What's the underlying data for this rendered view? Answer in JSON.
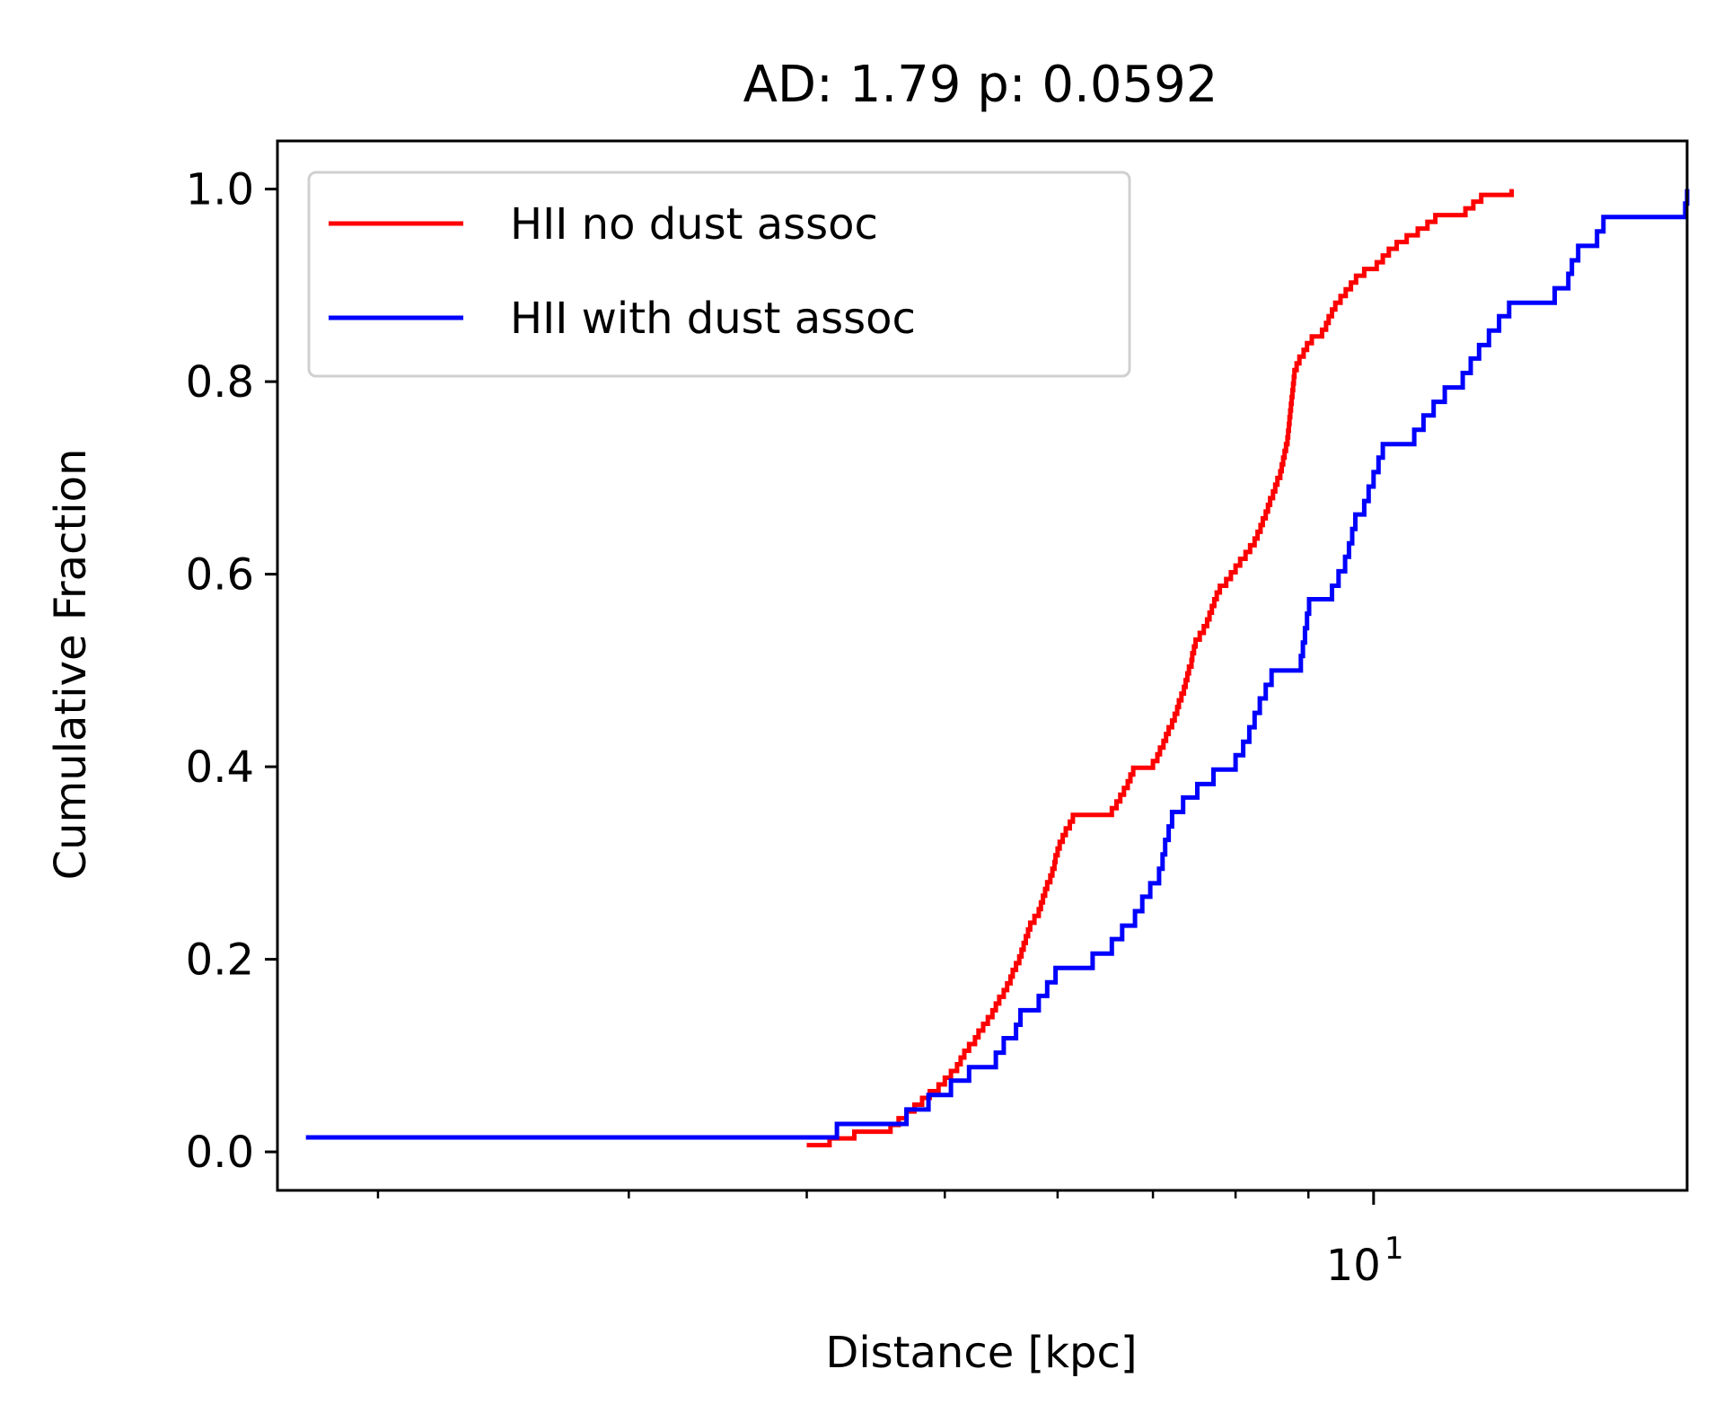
{
  "chart_data": {
    "type": "line",
    "title": "AD: 1.79 p: 0.0592",
    "xlabel": "Distance [kpc]",
    "ylabel": "Cumulative Fraction",
    "x_scale": "log",
    "xlim": [
      1.7,
      16.6
    ],
    "ylim": [
      -0.04,
      1.05
    ],
    "y_ticks": [
      "0.0",
      "0.2",
      "0.4",
      "0.6",
      "0.8",
      "1.0"
    ],
    "x_major_tick": {
      "base": "10",
      "exponent": "1"
    },
    "grid": false,
    "legend_position": "top-left",
    "series": [
      {
        "name": "HII no dust assoc",
        "color": "#ff0000",
        "step": true,
        "points": [
          [
            4.0,
            0.007
          ],
          [
            4.15,
            0.014
          ],
          [
            4.32,
            0.021
          ],
          [
            4.58,
            0.028
          ],
          [
            4.64,
            0.035
          ],
          [
            4.7,
            0.042
          ],
          [
            4.76,
            0.049
          ],
          [
            4.82,
            0.056
          ],
          [
            4.88,
            0.063
          ],
          [
            4.95,
            0.07
          ],
          [
            5.0,
            0.077
          ],
          [
            5.05,
            0.084
          ],
          [
            5.1,
            0.091
          ],
          [
            5.13,
            0.098
          ],
          [
            5.16,
            0.105
          ],
          [
            5.2,
            0.112
          ],
          [
            5.25,
            0.119
          ],
          [
            5.28,
            0.126
          ],
          [
            5.32,
            0.133
          ],
          [
            5.36,
            0.14
          ],
          [
            5.4,
            0.147
          ],
          [
            5.43,
            0.154
          ],
          [
            5.46,
            0.161
          ],
          [
            5.5,
            0.168
          ],
          [
            5.53,
            0.175
          ],
          [
            5.56,
            0.182
          ],
          [
            5.58,
            0.189
          ],
          [
            5.61,
            0.196
          ],
          [
            5.64,
            0.203
          ],
          [
            5.66,
            0.21
          ],
          [
            5.68,
            0.217
          ],
          [
            5.7,
            0.224
          ],
          [
            5.72,
            0.231
          ],
          [
            5.74,
            0.238
          ],
          [
            5.78,
            0.245
          ],
          [
            5.82,
            0.252
          ],
          [
            5.84,
            0.259
          ],
          [
            5.86,
            0.266
          ],
          [
            5.88,
            0.273
          ],
          [
            5.9,
            0.28
          ],
          [
            5.93,
            0.287
          ],
          [
            5.95,
            0.294
          ],
          [
            5.97,
            0.301
          ],
          [
            5.98,
            0.308
          ],
          [
            6.0,
            0.315
          ],
          [
            6.02,
            0.322
          ],
          [
            6.05,
            0.329
          ],
          [
            6.08,
            0.336
          ],
          [
            6.12,
            0.343
          ],
          [
            6.15,
            0.35
          ],
          [
            6.55,
            0.357
          ],
          [
            6.6,
            0.364
          ],
          [
            6.64,
            0.371
          ],
          [
            6.68,
            0.378
          ],
          [
            6.72,
            0.385
          ],
          [
            6.75,
            0.392
          ],
          [
            6.78,
            0.399
          ],
          [
            7.0,
            0.406
          ],
          [
            7.05,
            0.413
          ],
          [
            7.08,
            0.42
          ],
          [
            7.12,
            0.427
          ],
          [
            7.15,
            0.434
          ],
          [
            7.18,
            0.441
          ],
          [
            7.22,
            0.448
          ],
          [
            7.25,
            0.455
          ],
          [
            7.28,
            0.462
          ],
          [
            7.3,
            0.469
          ],
          [
            7.33,
            0.476
          ],
          [
            7.36,
            0.483
          ],
          [
            7.38,
            0.49
          ],
          [
            7.4,
            0.497
          ],
          [
            7.42,
            0.504
          ],
          [
            7.45,
            0.511
          ],
          [
            7.46,
            0.518
          ],
          [
            7.48,
            0.525
          ],
          [
            7.5,
            0.532
          ],
          [
            7.55,
            0.539
          ],
          [
            7.6,
            0.546
          ],
          [
            7.64,
            0.553
          ],
          [
            7.67,
            0.56
          ],
          [
            7.7,
            0.567
          ],
          [
            7.73,
            0.574
          ],
          [
            7.76,
            0.581
          ],
          [
            7.8,
            0.588
          ],
          [
            7.88,
            0.595
          ],
          [
            7.94,
            0.602
          ],
          [
            8.0,
            0.609
          ],
          [
            8.06,
            0.616
          ],
          [
            8.13,
            0.623
          ],
          [
            8.19,
            0.63
          ],
          [
            8.25,
            0.637
          ],
          [
            8.29,
            0.644
          ],
          [
            8.33,
            0.651
          ],
          [
            8.36,
            0.658
          ],
          [
            8.4,
            0.665
          ],
          [
            8.43,
            0.672
          ],
          [
            8.46,
            0.679
          ],
          [
            8.5,
            0.686
          ],
          [
            8.53,
            0.693
          ],
          [
            8.56,
            0.7
          ],
          [
            8.6,
            0.707
          ],
          [
            8.62,
            0.714
          ],
          [
            8.64,
            0.721
          ],
          [
            8.66,
            0.728
          ],
          [
            8.68,
            0.735
          ],
          [
            8.7,
            0.742
          ],
          [
            8.71,
            0.749
          ],
          [
            8.72,
            0.756
          ],
          [
            8.73,
            0.763
          ],
          [
            8.74,
            0.77
          ],
          [
            8.75,
            0.777
          ],
          [
            8.76,
            0.784
          ],
          [
            8.77,
            0.791
          ],
          [
            8.78,
            0.798
          ],
          [
            8.79,
            0.805
          ],
          [
            8.8,
            0.812
          ],
          [
            8.83,
            0.819
          ],
          [
            8.87,
            0.826
          ],
          [
            8.93,
            0.833
          ],
          [
            8.98,
            0.84
          ],
          [
            9.05,
            0.847
          ],
          [
            9.2,
            0.854
          ],
          [
            9.26,
            0.861
          ],
          [
            9.3,
            0.868
          ],
          [
            9.35,
            0.875
          ],
          [
            9.4,
            0.882
          ],
          [
            9.48,
            0.889
          ],
          [
            9.56,
            0.896
          ],
          [
            9.64,
            0.903
          ],
          [
            9.72,
            0.91
          ],
          [
            9.85,
            0.917
          ],
          [
            10.05,
            0.924
          ],
          [
            10.15,
            0.931
          ],
          [
            10.25,
            0.938
          ],
          [
            10.38,
            0.945
          ],
          [
            10.55,
            0.952
          ],
          [
            10.74,
            0.959
          ],
          [
            10.91,
            0.966
          ],
          [
            11.05,
            0.973
          ],
          [
            11.6,
            0.98
          ],
          [
            11.75,
            0.987
          ],
          [
            11.9,
            0.994
          ],
          [
            12.5,
            1.0
          ]
        ]
      },
      {
        "name": "HII with dust assoc",
        "color": "#0000ff",
        "step": true,
        "points": [
          [
            1.78,
            0.015
          ],
          [
            4.2,
            0.029
          ],
          [
            4.7,
            0.044
          ],
          [
            4.87,
            0.059
          ],
          [
            5.05,
            0.074
          ],
          [
            5.2,
            0.088
          ],
          [
            5.43,
            0.103
          ],
          [
            5.5,
            0.118
          ],
          [
            5.61,
            0.132
          ],
          [
            5.65,
            0.147
          ],
          [
            5.82,
            0.162
          ],
          [
            5.9,
            0.176
          ],
          [
            5.98,
            0.191
          ],
          [
            6.35,
            0.206
          ],
          [
            6.55,
            0.221
          ],
          [
            6.66,
            0.235
          ],
          [
            6.8,
            0.25
          ],
          [
            6.88,
            0.265
          ],
          [
            6.97,
            0.279
          ],
          [
            7.07,
            0.294
          ],
          [
            7.11,
            0.309
          ],
          [
            7.14,
            0.324
          ],
          [
            7.18,
            0.338
          ],
          [
            7.22,
            0.353
          ],
          [
            7.35,
            0.368
          ],
          [
            7.52,
            0.382
          ],
          [
            7.72,
            0.397
          ],
          [
            8.0,
            0.412
          ],
          [
            8.1,
            0.426
          ],
          [
            8.18,
            0.441
          ],
          [
            8.25,
            0.456
          ],
          [
            8.32,
            0.471
          ],
          [
            8.4,
            0.485
          ],
          [
            8.48,
            0.5
          ],
          [
            8.89,
            0.515
          ],
          [
            8.92,
            0.529
          ],
          [
            8.95,
            0.544
          ],
          [
            8.98,
            0.559
          ],
          [
            9.01,
            0.574
          ],
          [
            9.35,
            0.588
          ],
          [
            9.45,
            0.603
          ],
          [
            9.55,
            0.618
          ],
          [
            9.61,
            0.632
          ],
          [
            9.66,
            0.647
          ],
          [
            9.71,
            0.662
          ],
          [
            9.85,
            0.676
          ],
          [
            9.92,
            0.691
          ],
          [
            10.0,
            0.706
          ],
          [
            10.08,
            0.721
          ],
          [
            10.15,
            0.735
          ],
          [
            10.68,
            0.75
          ],
          [
            10.84,
            0.765
          ],
          [
            11.02,
            0.779
          ],
          [
            11.22,
            0.794
          ],
          [
            11.55,
            0.809
          ],
          [
            11.7,
            0.824
          ],
          [
            11.86,
            0.838
          ],
          [
            12.05,
            0.853
          ],
          [
            12.25,
            0.868
          ],
          [
            12.45,
            0.882
          ],
          [
            13.4,
            0.897
          ],
          [
            13.7,
            0.912
          ],
          [
            13.78,
            0.926
          ],
          [
            13.92,
            0.941
          ],
          [
            14.35,
            0.956
          ],
          [
            14.5,
            0.971
          ],
          [
            16.55,
            0.985
          ],
          [
            17.45,
            1.0
          ]
        ]
      }
    ]
  }
}
